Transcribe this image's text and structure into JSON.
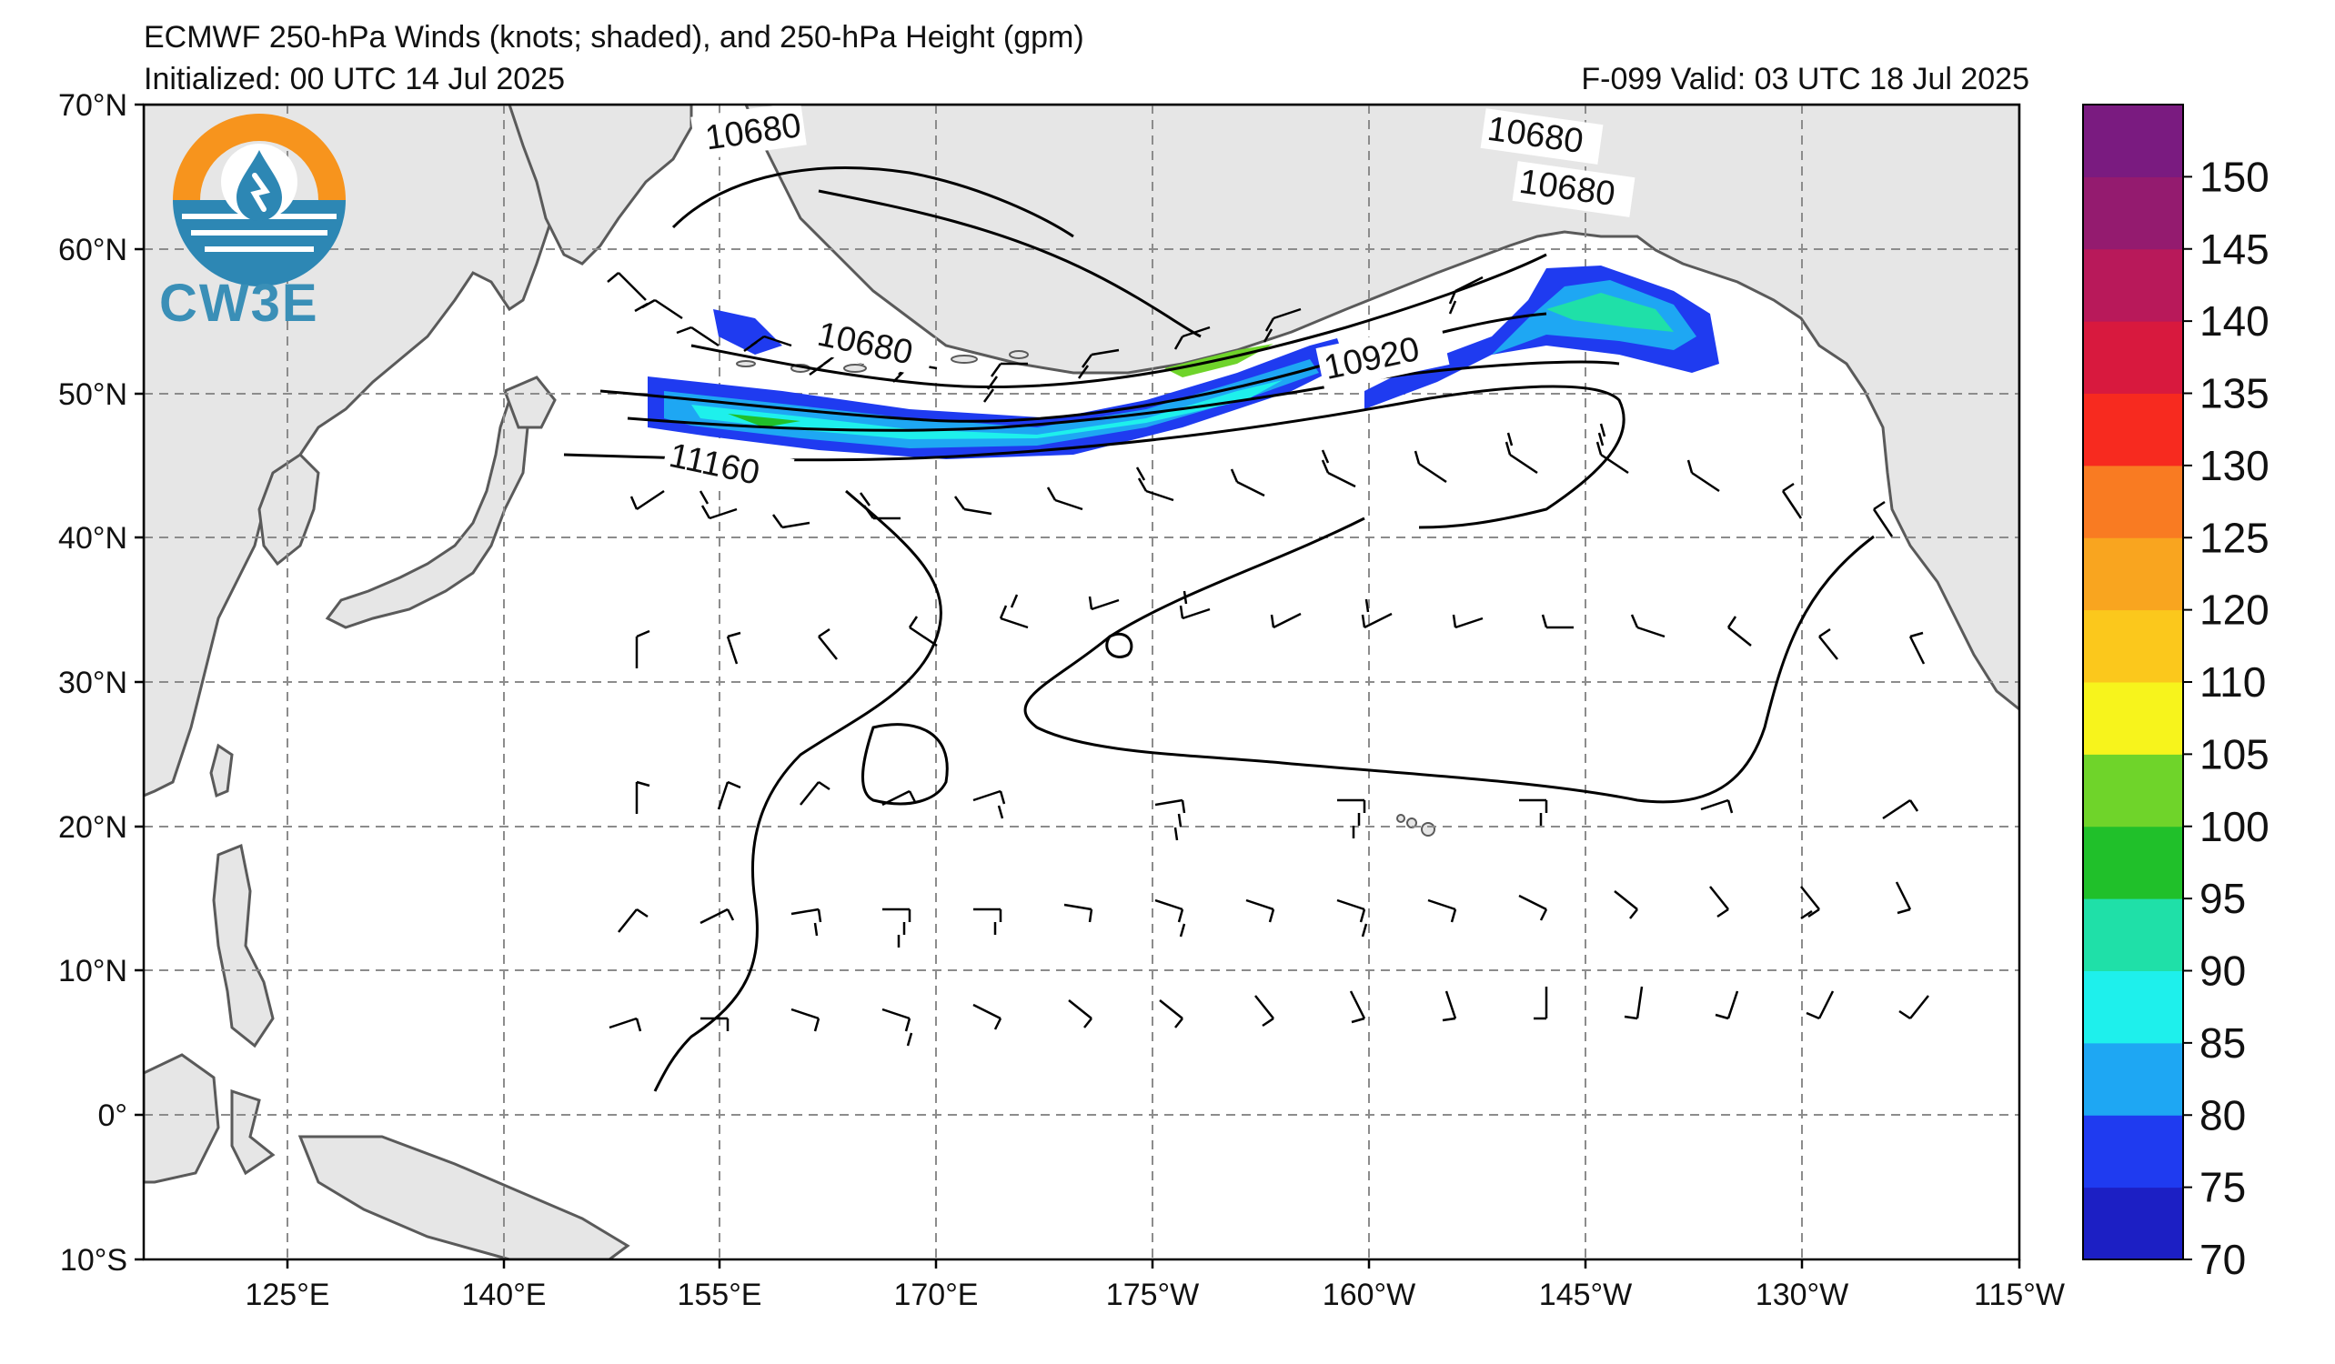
{
  "header": {
    "title": "ECMWF 250-hPa Winds (knots; shaded), and 250-hPa Height (gpm)",
    "initialized": "Initialized: 00 UTC 14 Jul 2025",
    "valid": "F-099  Valid: 03 UTC 18 Jul 2025"
  },
  "logo": {
    "text": "CW3E",
    "icon": "water-drop-sun-icon"
  },
  "axes": {
    "lat_labels": [
      "70°N",
      "60°N",
      "50°N",
      "40°N",
      "30°N",
      "20°N",
      "10°N",
      "0°",
      "10°S"
    ],
    "lon_labels": [
      "125°E",
      "140°E",
      "155°E",
      "170°E",
      "175°W",
      "160°W",
      "145°W",
      "130°W",
      "115°W"
    ]
  },
  "colorbar": {
    "levels": [
      "70",
      "75",
      "80",
      "85",
      "90",
      "95",
      "100",
      "105",
      "110",
      "120",
      "125",
      "130",
      "135",
      "140",
      "145",
      "150"
    ],
    "colors": [
      "#1c1fc4",
      "#1f3bf0",
      "#1ea7f3",
      "#1ef0ec",
      "#1fe0a8",
      "#20c02a",
      "#6fd42a",
      "#f7f41c",
      "#fbc81c",
      "#f9a51f",
      "#f97b22",
      "#f72a1f",
      "#d8193e",
      "#b8195a",
      "#941b6f",
      "#7a1b80"
    ]
  },
  "contour_labels": [
    {
      "text": "10680"
    },
    {
      "text": "10680"
    },
    {
      "text": "10680"
    },
    {
      "text": "10680"
    },
    {
      "text": "10920"
    },
    {
      "text": "11160"
    }
  ],
  "colors": {
    "land": "#e6e6e6",
    "coast": "#5a5a5a",
    "grid": "#8c8c8c",
    "contour": "#000000"
  }
}
